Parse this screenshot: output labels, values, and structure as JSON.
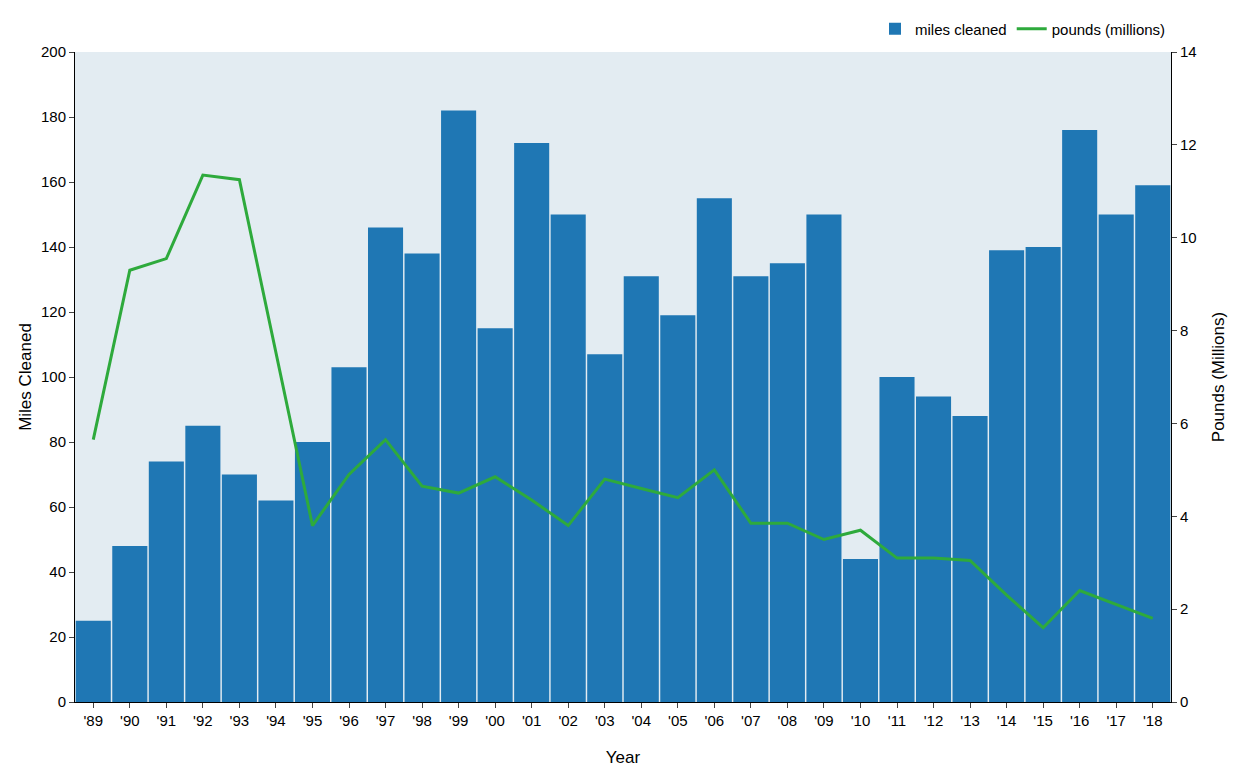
{
  "chart_data": {
    "type": "bar",
    "x_label": "Year",
    "y_label": "Miles Cleaned",
    "y2_label": "Pounds (Millions)",
    "categories": [
      "'89",
      "'90",
      "'91",
      "'92",
      "'93",
      "'94",
      "'95",
      "'96",
      "'97",
      "'98",
      "'99",
      "'00",
      "'01",
      "'02",
      "'03",
      "'04",
      "'05",
      "'06",
      "'07",
      "'08",
      "'09",
      "'10",
      "'11",
      "'12",
      "'13",
      "'14",
      "'15",
      "'16",
      "'17",
      "'18"
    ],
    "series": [
      {
        "name": "miles cleaned",
        "type": "bar",
        "color": "#1f77b4",
        "values": [
          25,
          48,
          74,
          85,
          70,
          62,
          80,
          103,
          146,
          138,
          182,
          115,
          172,
          150,
          107,
          131,
          119,
          155,
          131,
          135,
          150,
          44,
          100,
          94,
          88,
          139,
          140,
          176,
          150,
          159
        ]
      },
      {
        "name": "pounds (millions)",
        "type": "line",
        "color": "#2eaa3c",
        "axis": "y2",
        "values": [
          5.65,
          9.3,
          9.55,
          11.35,
          11.25,
          7.5,
          3.8,
          4.9,
          5.65,
          4.65,
          4.5,
          4.85,
          4.35,
          3.8,
          4.8,
          4.6,
          4.4,
          5.0,
          3.85,
          3.85,
          3.5,
          3.7,
          3.1,
          3.1,
          3.05,
          2.3,
          1.6,
          2.4,
          2.1,
          1.8
        ]
      }
    ],
    "ylim": [
      0,
      200
    ],
    "yticks": [
      0,
      20,
      40,
      60,
      80,
      100,
      120,
      140,
      160,
      180,
      200
    ],
    "y2lim": [
      0,
      14
    ],
    "y2ticks": [
      0,
      2,
      4,
      6,
      8,
      10,
      12,
      14
    ],
    "grid": false,
    "legend": "top right"
  }
}
